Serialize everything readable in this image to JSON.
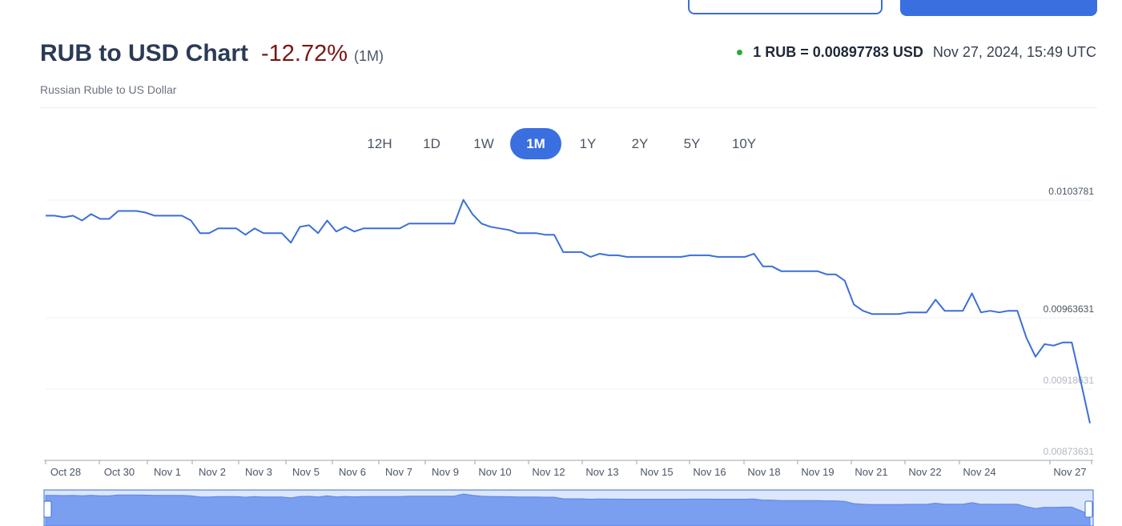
{
  "header": {
    "title": "RUB to USD Chart",
    "change": "-12.72%",
    "period": "(1M)",
    "subtitle": "Russian Ruble to US Dollar",
    "rate_text": "1 RUB = 0.00897783 USD",
    "rate_time": "Nov 27, 2024, 15:49 UTC"
  },
  "tabs": [
    "12H",
    "1D",
    "1W",
    "1M",
    "1Y",
    "2Y",
    "5Y",
    "10Y"
  ],
  "active_tab": "1M",
  "colors": {
    "accent": "#3a6fe0",
    "line": "#3a6fd8",
    "negative": "#7a1515",
    "live": "#2eaa3a"
  },
  "chart_data": {
    "type": "line",
    "y_ticks": [
      "0.0103781",
      "0.00963631",
      "0.00918631",
      "0.00873631"
    ],
    "x_ticks": [
      "Oct 28",
      "Oct 30",
      "Nov 1",
      "Nov 2",
      "Nov 3",
      "Nov 5",
      "Nov 6",
      "Nov 7",
      "Nov 9",
      "Nov 10",
      "Nov 12",
      "Nov 13",
      "Nov 15",
      "Nov 16",
      "Nov 18",
      "Nov 19",
      "Nov 21",
      "Nov 22",
      "Nov 24",
      "Nov 27"
    ],
    "ylim": [
      0.00873631,
      0.0103781
    ],
    "series": [
      {
        "values": [
          0.01028,
          0.01028,
          0.01027,
          0.01028,
          0.01025,
          0.01029,
          0.01026,
          0.01026,
          0.01031,
          0.01031,
          0.01031,
          0.0103,
          0.01028,
          0.01028,
          0.01028,
          0.01028,
          0.01025,
          0.01017,
          0.01017,
          0.0102,
          0.0102,
          0.0102,
          0.01016,
          0.0102,
          0.01017,
          0.01017,
          0.01017,
          0.01011,
          0.01021,
          0.01022,
          0.01017,
          0.01025,
          0.01018,
          0.01021,
          0.01018,
          0.0102,
          0.0102,
          0.0102,
          0.0102,
          0.0102,
          0.01023,
          0.01023,
          0.01023,
          0.01023,
          0.01023,
          0.01023,
          0.01038,
          0.01029,
          0.01023,
          0.01021,
          0.0102,
          0.01019,
          0.01017,
          0.01017,
          0.01017,
          0.01016,
          0.01016,
          0.01005,
          0.01005,
          0.01005,
          0.01002,
          0.01004,
          0.01003,
          0.01003,
          0.01002,
          0.01002,
          0.01002,
          0.01002,
          0.01002,
          0.01002,
          0.01002,
          0.01003,
          0.01003,
          0.01003,
          0.01002,
          0.01002,
          0.01002,
          0.01002,
          0.01004,
          0.00996,
          0.00996,
          0.00993,
          0.00993,
          0.00993,
          0.00993,
          0.00993,
          0.00991,
          0.00991,
          0.00987,
          0.00972,
          0.00968,
          0.00966,
          0.00966,
          0.00966,
          0.00966,
          0.00967,
          0.00967,
          0.00967,
          0.00975,
          0.00968,
          0.00968,
          0.00968,
          0.00979,
          0.00967,
          0.00968,
          0.00967,
          0.00968,
          0.00968,
          0.00951,
          0.00939,
          0.00947,
          0.00946,
          0.00948,
          0.00948,
          0.00923,
          0.00897
        ]
      }
    ]
  }
}
